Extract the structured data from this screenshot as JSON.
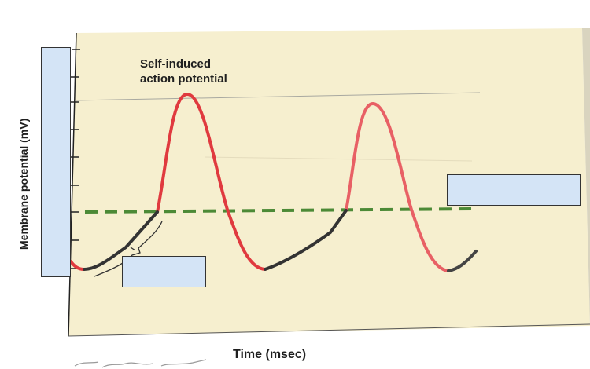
{
  "figure": {
    "annotation_line1": "Self-induced",
    "annotation_line2": "action potential",
    "y_axis_label": "Membrane potential (mV)",
    "x_axis_label": "Time (msec)"
  },
  "colors": {
    "paper": "#f6efcf",
    "action_potential": "#e03a3f",
    "prepotential": "#333333",
    "threshold": "#4c8a36",
    "label_box_fill": "#d4e4f6"
  },
  "label_boxes": {
    "y_axis_box": {
      "value": ""
    },
    "prepotential_box": {
      "value": ""
    },
    "threshold_box": {
      "value": ""
    }
  }
}
